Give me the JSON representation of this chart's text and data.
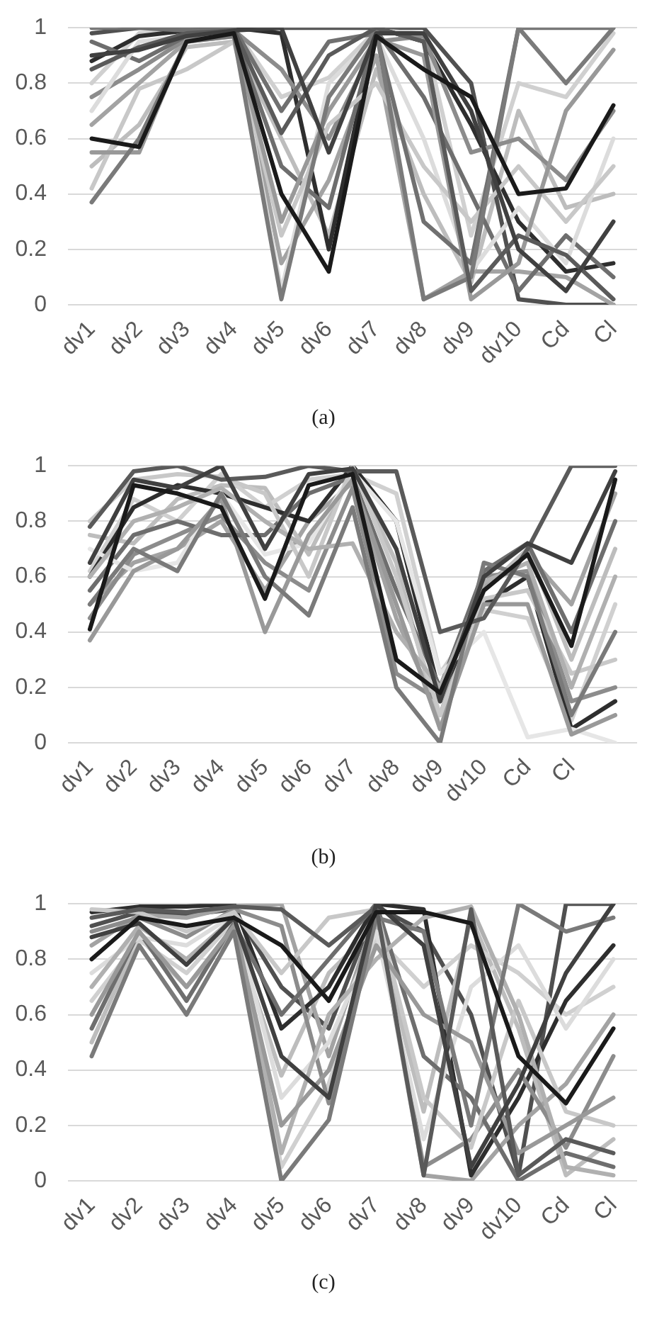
{
  "chart_data": [
    {
      "type": "line",
      "annotations": [
        "(a)"
      ],
      "categories": [
        "dv1",
        "dv2",
        "dv3",
        "dv4",
        "dv5",
        "dv6",
        "dv7",
        "dv8",
        "dv9",
        "dv10",
        "Cd",
        "Cl"
      ],
      "ylim": [
        0,
        1
      ],
      "yticks": [
        0,
        0.2,
        0.4,
        0.6,
        0.8,
        1
      ],
      "grid": "y",
      "series": [
        {
          "color": "#1a1a1a",
          "values": [
            0.6,
            0.57,
            0.95,
            0.98,
            0.4,
            0.12,
            0.97,
            0.85,
            0.75,
            0.4,
            0.42,
            0.72
          ]
        },
        {
          "color": "#404040",
          "values": [
            0.9,
            0.92,
            0.97,
            0.99,
            1.0,
            0.55,
            0.98,
            0.98,
            0.7,
            0.2,
            0.05,
            0.3
          ]
        },
        {
          "color": "#5a5a5a",
          "values": [
            0.85,
            0.93,
            0.98,
            0.99,
            0.62,
            0.9,
            1.0,
            0.95,
            0.05,
            0.25,
            0.18,
            0.02
          ]
        },
        {
          "color": "#7a7a7a",
          "values": [
            0.37,
            0.6,
            0.95,
            0.97,
            0.02,
            0.75,
            0.99,
            0.02,
            0.1,
            1.0,
            0.8,
            1.0
          ]
        },
        {
          "color": "#999999",
          "values": [
            0.55,
            0.55,
            0.96,
            0.97,
            0.3,
            0.7,
            0.96,
            0.9,
            0.02,
            0.15,
            0.7,
            0.92
          ]
        },
        {
          "color": "#707070",
          "values": [
            1.0,
            1.0,
            0.99,
            1.0,
            0.7,
            0.95,
            0.98,
            0.3,
            0.15,
            1.0,
            1.0,
            1.0
          ]
        },
        {
          "color": "#c8c8c8",
          "values": [
            0.42,
            0.78,
            0.85,
            0.95,
            0.25,
            0.65,
            0.8,
            0.5,
            0.3,
            0.5,
            0.3,
            0.5
          ]
        },
        {
          "color": "#dcdcdc",
          "values": [
            0.7,
            0.95,
            0.97,
            0.98,
            0.05,
            0.8,
            0.97,
            0.6,
            0.12,
            0.35,
            0.15,
            0.6
          ]
        },
        {
          "color": "#6e6e6e",
          "values": [
            0.95,
            0.88,
            0.97,
            0.98,
            0.5,
            0.35,
            0.99,
            0.75,
            0.4,
            0.05,
            0.25,
            0.1
          ]
        },
        {
          "color": "#8c8c8c",
          "values": [
            0.75,
            0.85,
            0.96,
            0.99,
            0.85,
            0.6,
            0.95,
            0.97,
            0.55,
            0.6,
            0.45,
            0.7
          ]
        },
        {
          "color": "#2e2e2e",
          "values": [
            0.88,
            0.97,
            0.99,
            1.0,
            0.98,
            0.2,
            1.0,
            0.95,
            0.65,
            0.3,
            0.12,
            0.15
          ]
        },
        {
          "color": "#a3a3a3",
          "values": [
            0.65,
            0.8,
            0.95,
            0.97,
            0.15,
            0.45,
            0.9,
            0.02,
            0.12,
            0.12,
            0.1,
            0.0
          ]
        },
        {
          "color": "#d0d0d0",
          "values": [
            0.8,
            0.98,
            0.99,
            1.0,
            0.75,
            0.82,
            0.99,
            0.98,
            0.25,
            0.8,
            0.75,
            0.98
          ]
        },
        {
          "color": "#505050",
          "values": [
            0.98,
            1.0,
            1.0,
            1.0,
            1.0,
            1.0,
            1.0,
            1.0,
            0.8,
            0.02,
            0.0,
            0.0
          ]
        },
        {
          "color": "#bdbdbd",
          "values": [
            0.5,
            0.65,
            0.93,
            0.95,
            0.6,
            0.25,
            0.85,
            0.4,
            0.08,
            0.7,
            0.35,
            0.4
          ]
        }
      ]
    },
    {
      "type": "line",
      "annotations": [
        "(b)"
      ],
      "categories": [
        "dv1",
        "dv2",
        "dv3",
        "dv4",
        "dv5",
        "dv6",
        "dv7",
        "dv8",
        "dv9",
        "dv10",
        "Cd",
        "Cl",
        null
      ],
      "ylim": [
        0,
        1
      ],
      "yticks": [
        0,
        0.2,
        0.4,
        0.6,
        0.8,
        1
      ],
      "grid": "y",
      "series": [
        {
          "color": "#1a1a1a",
          "values": [
            0.41,
            0.93,
            0.9,
            0.85,
            0.52,
            0.93,
            0.97,
            0.3,
            0.18,
            0.55,
            0.68,
            0.35,
            0.95
          ]
        },
        {
          "color": "#404040",
          "values": [
            0.65,
            0.95,
            0.92,
            1.0,
            0.7,
            0.97,
            0.99,
            0.7,
            0.15,
            0.6,
            0.72,
            0.65,
            0.98
          ]
        },
        {
          "color": "#5a5a5a",
          "values": [
            0.78,
            0.98,
            1.0,
            0.95,
            0.96,
            1.0,
            0.98,
            0.98,
            0.4,
            0.45,
            0.7,
            1.0,
            1.0
          ]
        },
        {
          "color": "#7a7a7a",
          "values": [
            0.5,
            0.7,
            0.62,
            0.9,
            0.6,
            0.46,
            0.85,
            0.2,
            0.0,
            0.65,
            0.6,
            0.1,
            0.4
          ]
        },
        {
          "color": "#999999",
          "values": [
            0.37,
            0.62,
            0.7,
            0.88,
            0.4,
            0.75,
            0.95,
            0.5,
            0.05,
            0.5,
            0.5,
            0.03,
            0.1
          ]
        },
        {
          "color": "#b0b0b0",
          "values": [
            0.6,
            0.8,
            0.85,
            0.92,
            0.8,
            0.7,
            0.72,
            0.4,
            0.2,
            0.58,
            0.65,
            0.2,
            0.6
          ]
        },
        {
          "color": "#c8c8c8",
          "values": [
            0.8,
            0.95,
            0.97,
            0.96,
            0.9,
            0.6,
            1.0,
            0.6,
            0.1,
            0.52,
            0.55,
            0.25,
            0.3
          ]
        },
        {
          "color": "#e6e6e6",
          "values": [
            0.7,
            0.62,
            0.65,
            0.9,
            0.68,
            0.72,
            0.98,
            0.8,
            0.25,
            0.4,
            0.02,
            0.05,
            0.0
          ]
        },
        {
          "color": "#6e6e6e",
          "values": [
            0.55,
            0.75,
            0.8,
            0.75,
            0.75,
            0.9,
            0.96,
            0.55,
            0.2,
            0.62,
            0.72,
            0.4,
            0.8
          ]
        },
        {
          "color": "#8c8c8c",
          "values": [
            0.45,
            0.68,
            0.75,
            0.82,
            0.65,
            0.55,
            0.92,
            0.25,
            0.15,
            0.6,
            0.62,
            0.15,
            0.2
          ]
        },
        {
          "color": "#2e2e2e",
          "values": [
            0.6,
            0.85,
            0.93,
            0.9,
            0.85,
            0.8,
            1.0,
            0.8,
            0.17,
            0.5,
            0.6,
            0.05,
            0.15
          ]
        },
        {
          "color": "#d0d0d0",
          "values": [
            0.62,
            0.88,
            0.8,
            0.97,
            0.85,
            0.95,
            0.97,
            0.9,
            0.25,
            0.48,
            0.45,
            0.08,
            0.5
          ]
        },
        {
          "color": "#bdbdbd",
          "values": [
            0.75,
            0.72,
            0.88,
            0.93,
            0.92,
            0.68,
            0.99,
            0.65,
            0.05,
            0.55,
            0.7,
            0.3,
            0.7
          ]
        },
        {
          "color": "#a3a3a3",
          "values": [
            0.5,
            0.65,
            0.7,
            0.8,
            0.55,
            0.8,
            0.94,
            0.45,
            0.1,
            0.57,
            0.68,
            0.5,
            0.9
          ]
        }
      ]
    },
    {
      "type": "line",
      "annotations": [
        "(c)"
      ],
      "categories": [
        "dv1",
        "dv2",
        "dv3",
        "dv4",
        "dv5",
        "dv6",
        "dv7",
        "dv8",
        "dv9",
        "dv10",
        "Cd",
        "Cl"
      ],
      "ylim": [
        0,
        1
      ],
      "yticks": [
        0,
        0.2,
        0.4,
        0.6,
        0.8,
        1
      ],
      "grid": "y",
      "series": [
        {
          "color": "#1a1a1a",
          "values": [
            0.8,
            0.95,
            0.92,
            0.95,
            0.85,
            0.65,
            0.97,
            0.97,
            0.93,
            0.45,
            0.28,
            0.55
          ]
        },
        {
          "color": "#404040",
          "values": [
            0.88,
            0.93,
            0.78,
            0.95,
            0.45,
            0.3,
            1.0,
            0.85,
            0.05,
            0.35,
            0.75,
            1.0
          ]
        },
        {
          "color": "#5a5a5a",
          "values": [
            0.95,
            0.98,
            0.97,
            0.99,
            0.98,
            0.85,
            0.99,
            0.02,
            0.98,
            0.02,
            0.15,
            0.1
          ]
        },
        {
          "color": "#7a7a7a",
          "values": [
            0.45,
            0.85,
            0.6,
            0.9,
            0.0,
            0.22,
            0.95,
            0.9,
            0.2,
            1.0,
            0.9,
            0.95
          ]
        },
        {
          "color": "#999999",
          "values": [
            0.6,
            0.9,
            0.7,
            0.92,
            0.2,
            0.4,
            0.85,
            0.6,
            0.5,
            0.1,
            0.2,
            0.3
          ]
        },
        {
          "color": "#b0b0b0",
          "values": [
            0.7,
            0.92,
            0.8,
            0.95,
            0.1,
            0.6,
            0.8,
            0.95,
            0.99,
            0.6,
            0.05,
            0.02
          ]
        },
        {
          "color": "#c8c8c8",
          "values": [
            0.98,
            0.97,
            0.9,
            0.97,
            0.75,
            0.95,
            0.98,
            0.3,
            0.12,
            0.65,
            0.25,
            0.2
          ]
        },
        {
          "color": "#dcdcdc",
          "values": [
            0.75,
            0.88,
            0.85,
            0.96,
            0.3,
            0.5,
            0.9,
            0.15,
            0.7,
            0.85,
            0.55,
            0.8
          ]
        },
        {
          "color": "#6e6e6e",
          "values": [
            0.55,
            0.9,
            0.65,
            0.93,
            0.6,
            0.8,
            1.0,
            0.45,
            0.3,
            0.0,
            0.1,
            0.05
          ]
        },
        {
          "color": "#8c8c8c",
          "values": [
            0.9,
            0.95,
            0.88,
            0.98,
            0.92,
            0.28,
            0.98,
            0.05,
            0.15,
            0.4,
            0.12,
            0.45
          ]
        },
        {
          "color": "#2e2e2e",
          "values": [
            0.97,
            0.99,
            0.99,
            1.0,
            0.55,
            0.7,
            1.0,
            0.98,
            0.02,
            0.3,
            0.65,
            0.85
          ]
        },
        {
          "color": "#d0d0d0",
          "values": [
            0.65,
            0.87,
            0.75,
            0.94,
            0.05,
            0.35,
            0.88,
            0.7,
            0.85,
            0.75,
            0.6,
            0.7
          ]
        },
        {
          "color": "#a3a3a3",
          "values": [
            0.85,
            0.96,
            0.95,
            0.99,
            1.0,
            0.45,
            0.97,
            0.02,
            0.0,
            0.2,
            0.35,
            0.6
          ]
        },
        {
          "color": "#bdbdbd",
          "values": [
            0.5,
            0.88,
            0.7,
            0.9,
            0.38,
            0.75,
            0.92,
            0.25,
            0.95,
            0.55,
            0.02,
            0.15
          ]
        },
        {
          "color": "#505050",
          "values": [
            0.92,
            0.97,
            0.96,
            0.98,
            0.7,
            0.55,
            0.99,
            0.9,
            0.6,
            0.02,
            1.0,
            1.0
          ]
        }
      ]
    }
  ]
}
